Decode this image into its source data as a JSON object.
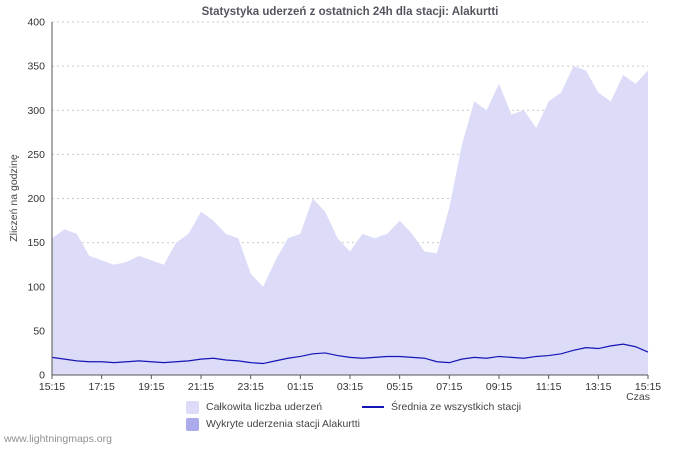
{
  "page": {
    "watermark": "www.lightningmaps.org"
  },
  "chart_data": {
    "type": "area",
    "title": "Statystyka uderzeń z ostatnich 24h dla stacji: Alakurtti",
    "xlabel": "Czas",
    "ylabel": "Zliczeń na godzinę",
    "ylim": [
      0,
      400
    ],
    "yticks": [
      0,
      50,
      100,
      150,
      200,
      250,
      300,
      350,
      400
    ],
    "x_labels": [
      "15:15",
      "17:15",
      "19:15",
      "21:15",
      "23:15",
      "01:15",
      "03:15",
      "05:15",
      "07:15",
      "09:15",
      "11:15",
      "13:15",
      "15:15"
    ],
    "legend_position": "bottom",
    "grid": "horizontal-dashed",
    "series": [
      {
        "name": "Całkowita liczba uderzeń",
        "type": "area",
        "color": "#dcdcf8",
        "values": [
          155,
          165,
          160,
          135,
          130,
          125,
          128,
          135,
          130,
          125,
          150,
          160,
          185,
          175,
          160,
          155,
          115,
          100,
          130,
          155,
          160,
          200,
          185,
          155,
          140,
          160,
          155,
          160,
          175,
          160,
          140,
          138,
          190,
          260,
          310,
          300,
          330,
          295,
          300,
          280,
          310,
          320,
          350,
          345,
          320,
          310,
          340,
          330,
          345
        ]
      },
      {
        "name": "Wykryte uderzenia stacji Alakurtti",
        "type": "area",
        "color": "#aaaaec",
        "values": [
          0,
          0,
          0,
          0,
          0,
          0,
          0,
          0,
          0,
          0,
          0,
          0,
          0,
          0,
          0,
          0,
          0,
          0,
          0,
          0,
          0,
          0,
          0,
          0,
          0,
          0,
          0,
          0,
          0,
          0,
          0,
          0,
          0,
          0,
          0,
          0,
          0,
          0,
          0,
          0,
          0,
          0,
          0,
          0,
          0,
          0,
          0,
          0,
          0
        ]
      },
      {
        "name": "Średnia ze wszystkich stacji",
        "type": "line",
        "color": "#1515b5",
        "values": [
          20,
          18,
          16,
          15,
          15,
          14,
          15,
          16,
          15,
          14,
          15,
          16,
          18,
          19,
          17,
          16,
          14,
          13,
          16,
          19,
          21,
          24,
          25,
          22,
          20,
          19,
          20,
          21,
          21,
          20,
          19,
          15,
          14,
          18,
          20,
          19,
          21,
          20,
          19,
          21,
          22,
          24,
          28,
          31,
          30,
          33,
          35,
          32,
          26
        ]
      }
    ]
  }
}
